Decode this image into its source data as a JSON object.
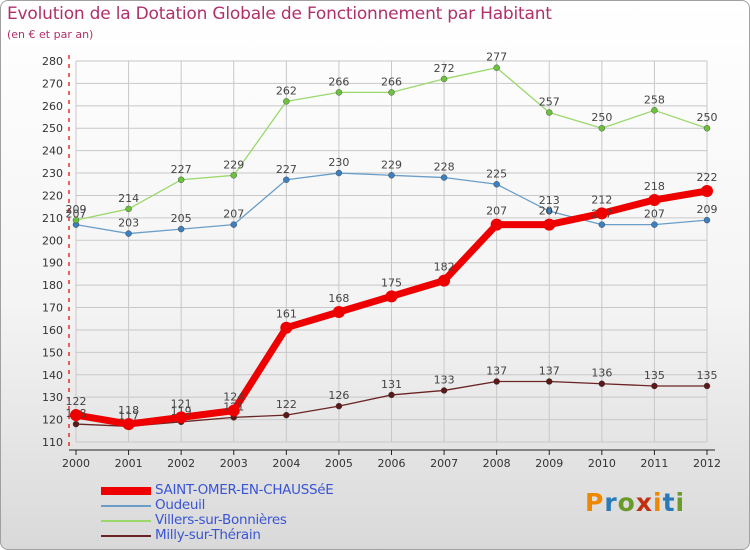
{
  "title": "Evolution de la Dotation Globale de Fonctionnement par Habitant",
  "subtitle": "(en € et par an)",
  "logo": "Proxiti",
  "chart_data": {
    "type": "line",
    "x": [
      "2000",
      "2001",
      "2002",
      "2003",
      "2004",
      "2005",
      "2006",
      "2007",
      "2008",
      "2009",
      "2010",
      "2011",
      "2012"
    ],
    "ylim": [
      110,
      280
    ],
    "yticks": [
      110,
      120,
      130,
      140,
      150,
      160,
      170,
      180,
      190,
      200,
      210,
      220,
      230,
      240,
      250,
      260,
      270,
      280
    ],
    "grid": true,
    "legend_position": "bottom-left",
    "series": [
      {
        "name": "Oudeuil",
        "color": "#6a9ec8",
        "width": 1.3,
        "dot": "#3d7fbf",
        "values": [
          207,
          203,
          205,
          207,
          227,
          230,
          229,
          228,
          225,
          213,
          207,
          207,
          209
        ]
      },
      {
        "name": "Villers-sur-Bonnières",
        "color": "#9ad86c",
        "width": 1.3,
        "dot": "#6cc23f",
        "values": [
          209,
          214,
          227,
          229,
          262,
          266,
          266,
          272,
          277,
          257,
          250,
          258,
          250
        ]
      },
      {
        "name": "Milly-sur-Thérain",
        "color": "#6b2424",
        "width": 1.3,
        "dot": "#5a1818",
        "values": [
          118,
          117,
          119,
          121,
          122,
          126,
          131,
          133,
          137,
          137,
          136,
          135,
          135
        ]
      },
      {
        "name": "SAINT-OMER-EN-CHAUSSéE",
        "color": "#ee0000",
        "width": 7,
        "dot": "#ee0000",
        "values": [
          122,
          118,
          121,
          124,
          161,
          168,
          175,
          182,
          207,
          207,
          212,
          218,
          222
        ]
      }
    ]
  },
  "legend_order": [
    3,
    0,
    1,
    2
  ],
  "logo_colors": [
    "#ee8800",
    "#2a7ab8",
    "#6a9a2a",
    "#c03010",
    "#ee8800",
    "#2a7ab8",
    "#6a9a2a"
  ]
}
